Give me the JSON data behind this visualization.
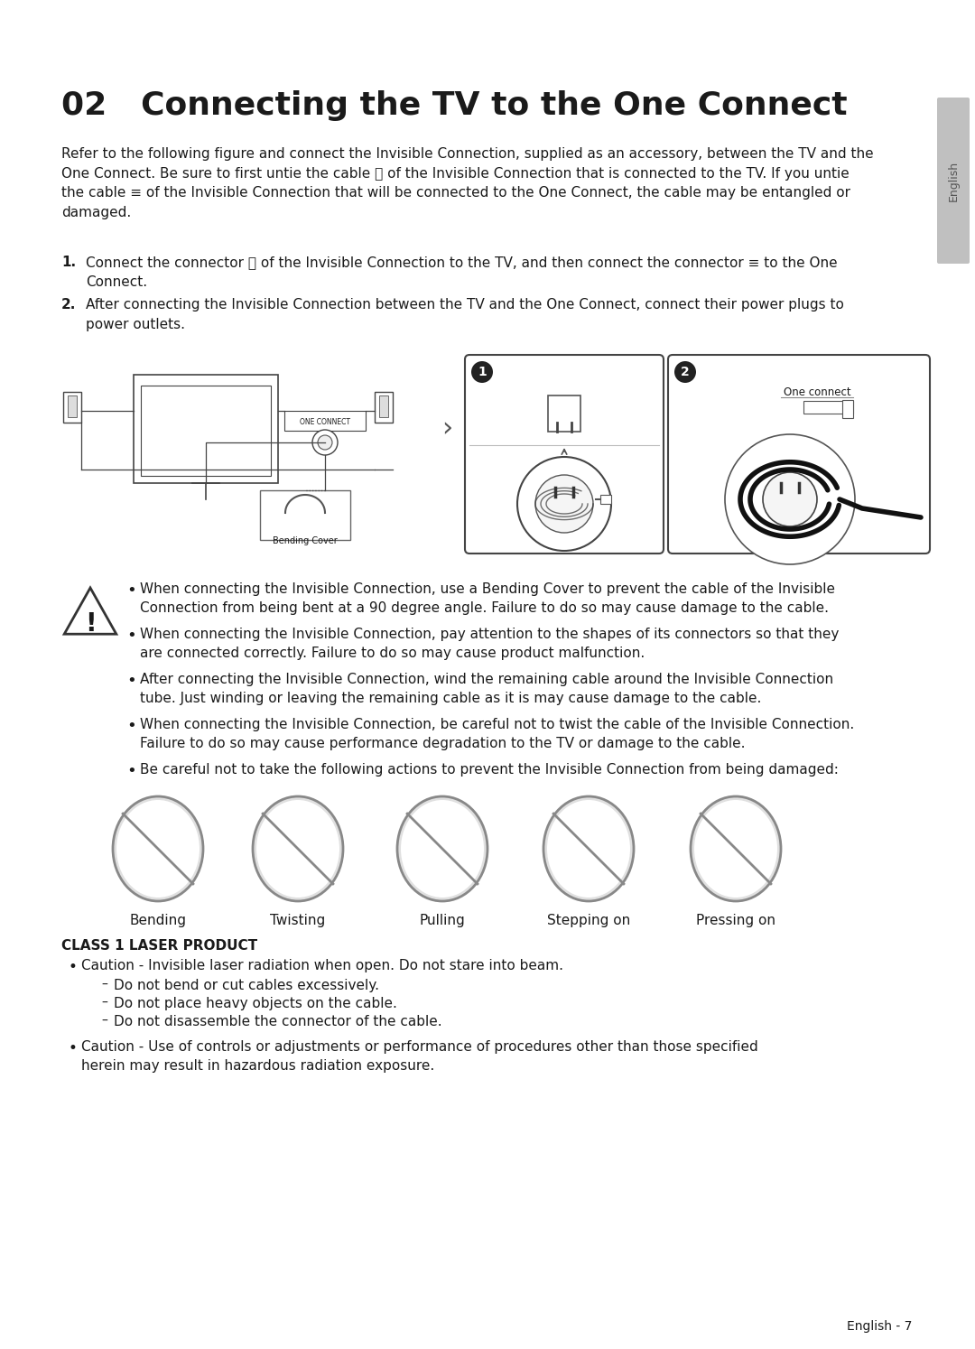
{
  "background_color": "#ffffff",
  "title": "02   Connecting the TV to the One Connect",
  "title_fontsize": 26,
  "body_text_1": "Refer to the following figure and connect the Invisible Connection, supplied as an accessory, between the TV and the\nOne Connect. Be sure to first untie the cable ⓣ of the Invisible Connection that is connected to the TV. If you untie\nthe cable ≡ of the Invisible Connection that will be connected to the One Connect, the cable may be entangled or\ndamaged.",
  "numbered_items": [
    "Connect the connector ⓣ of the Invisible Connection to the TV, and then connect the connector ≡ to the One\nConnect.",
    "After connecting the Invisible Connection between the TV and the One Connect, connect their power plugs to\npower outlets."
  ],
  "warning_bullets": [
    "When connecting the Invisible Connection, use a Bending Cover to prevent the cable of the Invisible\nConnection from being bent at a 90 degree angle. Failure to do so may cause damage to the cable.",
    "When connecting the Invisible Connection, pay attention to the shapes of its connectors so that they\nare connected correctly. Failure to do so may cause product malfunction.",
    "After connecting the Invisible Connection, wind the remaining cable around the Invisible Connection\ntube. Just winding or leaving the remaining cable as it is may cause damage to the cable.",
    "When connecting the Invisible Connection, be careful not to twist the cable of the Invisible Connection.\nFailure to do so may cause performance degradation to the TV or damage to the cable.",
    "Be careful not to take the following actions to prevent the Invisible Connection from being damaged:"
  ],
  "icon_labels": [
    "Bending",
    "Twisting",
    "Pulling",
    "Stepping on",
    "Pressing on"
  ],
  "class1_laser_title": "CLASS 1 LASER PRODUCT",
  "class1_laser_bullets": [
    "Caution - Invisible laser radiation when open. Do not stare into beam.",
    "Caution - Use of controls or adjustments or performance of procedures other than those specified\nherein may result in hazardous radiation exposure."
  ],
  "class1_laser_subbullets": [
    "Do not bend or cut cables excessively.",
    "Do not place heavy objects on the cable.",
    "Do not disassemble the connector of the cable."
  ],
  "page_number": "English - 7",
  "english_tab_text": "English",
  "text_color": "#1a1a1a",
  "body_fontsize": 11.0,
  "small_fontsize": 10.0
}
